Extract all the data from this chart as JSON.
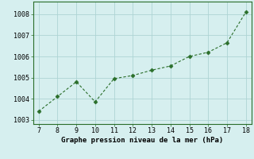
{
  "x": [
    7,
    8,
    9,
    10,
    11,
    12,
    13,
    14,
    15,
    16,
    17,
    18
  ],
  "y": [
    1003.4,
    1004.1,
    1004.8,
    1003.85,
    1004.95,
    1005.1,
    1005.35,
    1005.55,
    1006.0,
    1006.2,
    1006.65,
    1008.1
  ],
  "xlim": [
    6.7,
    18.3
  ],
  "ylim": [
    1002.8,
    1008.6
  ],
  "xticks": [
    7,
    8,
    9,
    10,
    11,
    12,
    13,
    14,
    15,
    16,
    17,
    18
  ],
  "yticks": [
    1003,
    1004,
    1005,
    1006,
    1007,
    1008
  ],
  "xlabel": "Graphe pression niveau de la mer (hPa)",
  "line_color": "#2a6e2a",
  "marker_color": "#2a6e2a",
  "bg_color": "#d6efef",
  "grid_color": "#aed4d4",
  "spine_color": "#2a6e2a",
  "label_fontsize": 6.5,
  "tick_fontsize": 6.0
}
